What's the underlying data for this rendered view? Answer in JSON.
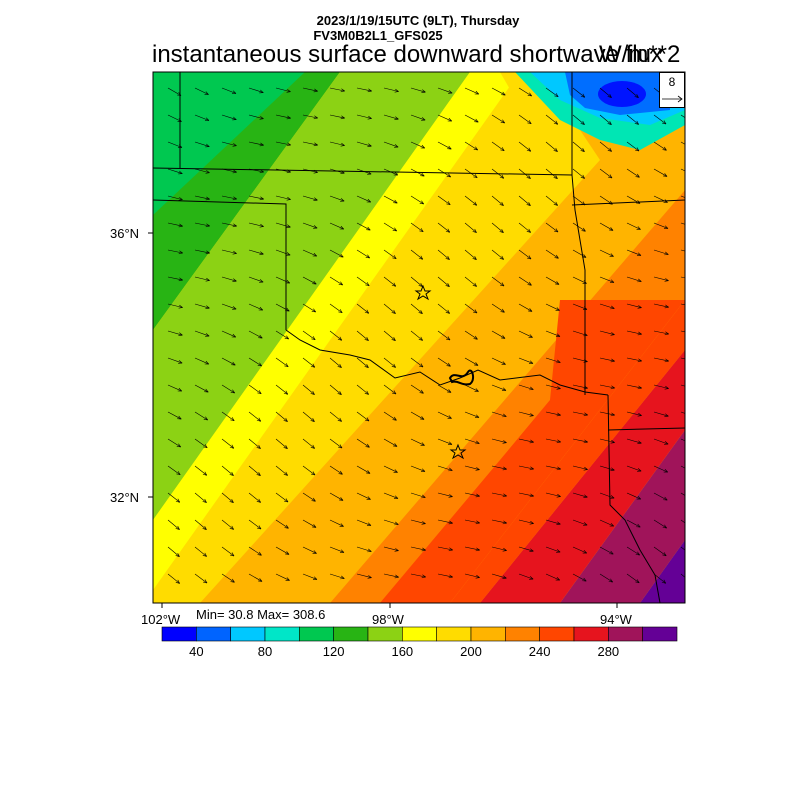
{
  "header": {
    "date_line": "2023/1/19/15UTC (9LT), Thursday",
    "model_line": "FV3M0B2L1_GFS025",
    "title": "instantaneous surface downward shortwave flux",
    "units": "W/m**2"
  },
  "map": {
    "region": "Oklahoma / northern Texas",
    "lat_labels": [
      "36°N",
      "32°N"
    ],
    "lon_labels": [
      "102°W",
      "98°W",
      "94°W"
    ],
    "markers": [
      "star",
      "star"
    ],
    "vector_reference": "8",
    "arrow_direction": "southeast"
  },
  "stats": {
    "text": "Min= 30.8 Max= 308.6",
    "min": 30.8,
    "max": 308.6
  },
  "colorbar": {
    "colors": [
      "#0000ff",
      "#0064ff",
      "#00c8ff",
      "#00e6c8",
      "#00c850",
      "#28b414",
      "#8cd214",
      "#ffff00",
      "#ffdc00",
      "#ffb400",
      "#ff8200",
      "#ff4600",
      "#e6141e",
      "#a0145a",
      "#640096"
    ],
    "tick_labels": [
      "40",
      "80",
      "120",
      "160",
      "200",
      "240",
      "280"
    ]
  },
  "colors": {
    "blue_dark": "#0014ff",
    "blue": "#006eff",
    "cyan": "#00c8ff",
    "teal": "#00e6b4",
    "green": "#00c850",
    "green_dark": "#28b414",
    "yellow_green": "#8cd214",
    "yellow": "#ffff00",
    "gold": "#ffdc00",
    "orange_light": "#ffb400",
    "orange": "#ff8200",
    "red_orange": "#ff4600",
    "red": "#e6141e",
    "maroon": "#a0145a",
    "purple": "#640096"
  }
}
